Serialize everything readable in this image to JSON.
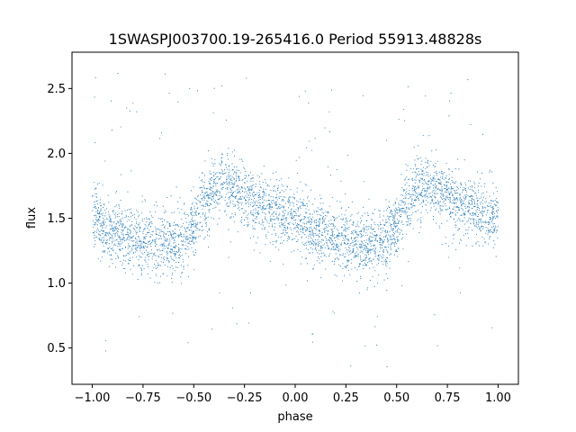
{
  "chart_data": {
    "type": "scatter",
    "title": "1SWASPJ003700.19-265416.0 Period 55913.48828s",
    "xlabel": "phase",
    "ylabel": "flux",
    "xlim": [
      -1.1,
      1.1
    ],
    "ylim": [
      0.22,
      2.78
    ],
    "x_ticks": [
      -1.0,
      -0.75,
      -0.5,
      -0.25,
      0.0,
      0.25,
      0.5,
      0.75,
      1.0
    ],
    "x_tick_labels": [
      "−1.00",
      "−0.75",
      "−0.50",
      "−0.25",
      "0.00",
      "0.25",
      "0.50",
      "0.75",
      "1.00"
    ],
    "y_ticks": [
      0.5,
      1.0,
      1.5,
      2.0,
      2.5
    ],
    "y_tick_labels": [
      "0.5",
      "1.0",
      "1.5",
      "2.0",
      "2.5"
    ],
    "grid": false,
    "legend": false,
    "point_color": "#1f77b4",
    "phase_curve": {
      "phase": [
        0.0,
        0.1,
        0.2,
        0.3,
        0.4,
        0.45,
        0.5,
        0.55,
        0.6,
        0.65,
        0.7,
        0.8,
        0.9,
        1.0
      ],
      "mean_flux": [
        1.5,
        1.4,
        1.34,
        1.31,
        1.3,
        1.33,
        1.45,
        1.62,
        1.72,
        1.76,
        1.72,
        1.63,
        1.56,
        1.5
      ],
      "scatter_sd": 0.12,
      "outlier_range": [
        0.33,
        2.66
      ]
    }
  }
}
